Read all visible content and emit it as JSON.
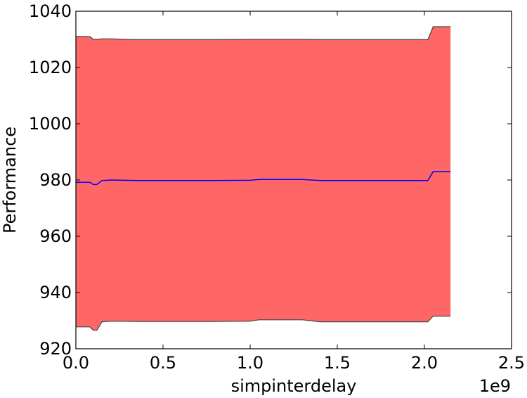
{
  "chart_data": {
    "type": "area",
    "title": "",
    "xlabel": "simpinterdelay",
    "ylabel": "Performance",
    "x_offset_label": "1e9",
    "xlim": [
      0.0,
      2.5
    ],
    "ylim": [
      920,
      1040
    ],
    "x_ticks": [
      "0.0",
      "0.5",
      "1.0",
      "1.5",
      "2.0",
      "2.5"
    ],
    "y_ticks": [
      "920",
      "940",
      "960",
      "980",
      "1000",
      "1020",
      "1040"
    ],
    "grid": false,
    "x_values": [
      0.0,
      0.08,
      0.1,
      0.12,
      0.15,
      0.2,
      0.35,
      0.8,
      1.0,
      1.05,
      1.3,
      1.4,
      1.95,
      2.02,
      2.05,
      2.15
    ],
    "series": [
      {
        "role": "mean",
        "color": "#0000ff",
        "values": [
          979.2,
          979.2,
          978.4,
          978.4,
          979.8,
          980.0,
          979.8,
          979.8,
          979.9,
          980.2,
          980.2,
          979.8,
          979.8,
          979.8,
          983.0,
          983.0
        ]
      },
      {
        "role": "upper",
        "color": "#444444",
        "values": [
          1031.0,
          1031.0,
          1030.0,
          1030.0,
          1030.2,
          1030.2,
          1029.9,
          1029.9,
          1030.0,
          1030.0,
          1030.0,
          1029.9,
          1029.9,
          1029.9,
          1034.5,
          1034.5
        ]
      },
      {
        "role": "lower",
        "color": "#444444",
        "values": [
          927.8,
          927.8,
          926.6,
          926.6,
          929.6,
          929.8,
          929.7,
          929.7,
          929.8,
          930.3,
          930.3,
          929.6,
          929.6,
          929.6,
          931.6,
          931.6
        ]
      }
    ],
    "band_color": "#ff6666"
  }
}
